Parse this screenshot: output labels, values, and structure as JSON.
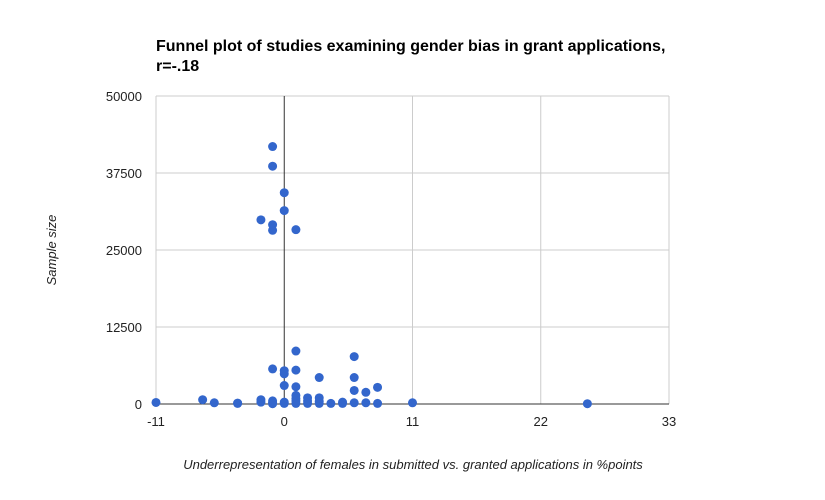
{
  "chart_data": {
    "type": "scatter",
    "title_lines": [
      "Funnel plot of studies examining gender bias in grant applications,",
      "r=-.18"
    ],
    "xlabel": "Underrepresentation of females in submitted vs. granted applications in %points",
    "ylabel": "Sample size",
    "xlim": [
      -11,
      33
    ],
    "ylim": [
      0,
      50000
    ],
    "x_ticks": [
      -11,
      0,
      11,
      22,
      33
    ],
    "x_tick_labels": [
      "-11",
      "0",
      "11",
      "22",
      "33"
    ],
    "y_ticks": [
      0,
      12500,
      25000,
      37500,
      50000
    ],
    "y_tick_labels": [
      "0",
      "12500",
      "25000",
      "37500",
      "50000"
    ],
    "grid": true,
    "legend": "none",
    "marker_color": "#3366cc",
    "points": [
      {
        "x": -11,
        "y": 250
      },
      {
        "x": -7,
        "y": 700
      },
      {
        "x": -6,
        "y": 200
      },
      {
        "x": -4,
        "y": 150
      },
      {
        "x": -4,
        "y": 100
      },
      {
        "x": -2,
        "y": 700
      },
      {
        "x": -2,
        "y": 300
      },
      {
        "x": -2,
        "y": 29900
      },
      {
        "x": -1,
        "y": 41800
      },
      {
        "x": -1,
        "y": 38600
      },
      {
        "x": -1,
        "y": 29100
      },
      {
        "x": -1,
        "y": 28200
      },
      {
        "x": -1,
        "y": 5700
      },
      {
        "x": -1,
        "y": 500
      },
      {
        "x": -1,
        "y": 200
      },
      {
        "x": -1,
        "y": 50
      },
      {
        "x": 0,
        "y": 34300
      },
      {
        "x": 0,
        "y": 31400
      },
      {
        "x": 0,
        "y": 5400
      },
      {
        "x": 0,
        "y": 4900
      },
      {
        "x": 0,
        "y": 3000
      },
      {
        "x": 0,
        "y": 300
      },
      {
        "x": 0,
        "y": 100
      },
      {
        "x": 1,
        "y": 28300
      },
      {
        "x": 1,
        "y": 8600
      },
      {
        "x": 1,
        "y": 5500
      },
      {
        "x": 1,
        "y": 2800
      },
      {
        "x": 1,
        "y": 1400
      },
      {
        "x": 1,
        "y": 900
      },
      {
        "x": 1,
        "y": 500
      },
      {
        "x": 1,
        "y": 100
      },
      {
        "x": 2,
        "y": 1000
      },
      {
        "x": 2,
        "y": 500
      },
      {
        "x": 2,
        "y": 100
      },
      {
        "x": 3,
        "y": 4300
      },
      {
        "x": 3,
        "y": 1000
      },
      {
        "x": 3,
        "y": 400
      },
      {
        "x": 3,
        "y": 100
      },
      {
        "x": 4,
        "y": 100
      },
      {
        "x": 5,
        "y": 300
      },
      {
        "x": 5,
        "y": 100
      },
      {
        "x": 6,
        "y": 7700
      },
      {
        "x": 6,
        "y": 4300
      },
      {
        "x": 6,
        "y": 2200
      },
      {
        "x": 6,
        "y": 200
      },
      {
        "x": 7,
        "y": 1900
      },
      {
        "x": 7,
        "y": 200
      },
      {
        "x": 8,
        "y": 2700
      },
      {
        "x": 8,
        "y": 100
      },
      {
        "x": 11,
        "y": 200
      },
      {
        "x": 26,
        "y": 50
      }
    ]
  }
}
